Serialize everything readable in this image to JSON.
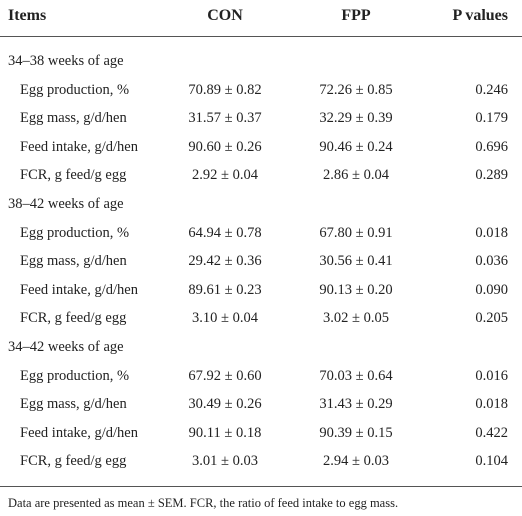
{
  "table": {
    "header": [
      "Items",
      "CON",
      "FPP",
      "P values"
    ],
    "sections": [
      {
        "title": "34–38 weeks of age",
        "rows": [
          [
            "Egg production, %",
            "70.89 ± 0.82",
            "72.26 ± 0.85",
            "0.246"
          ],
          [
            "Egg mass, g/d/hen",
            "31.57 ± 0.37",
            "32.29 ± 0.39",
            "0.179"
          ],
          [
            "Feed intake, g/d/hen",
            "90.60 ± 0.26",
            "90.46 ± 0.24",
            "0.696"
          ],
          [
            "FCR, g feed/g egg",
            "2.92 ± 0.04",
            "2.86 ± 0.04",
            "0.289"
          ]
        ]
      },
      {
        "title": "38–42 weeks of age",
        "rows": [
          [
            "Egg production, %",
            "64.94 ± 0.78",
            "67.80 ± 0.91",
            "0.018"
          ],
          [
            "Egg mass, g/d/hen",
            "29.42 ± 0.36",
            "30.56 ± 0.41",
            "0.036"
          ],
          [
            "Feed intake, g/d/hen",
            "89.61 ± 0.23",
            "90.13 ± 0.20",
            "0.090"
          ],
          [
            "FCR, g feed/g egg",
            "3.10 ± 0.04",
            "3.02 ± 0.05",
            "0.205"
          ]
        ]
      },
      {
        "title": "34–42 weeks of age",
        "rows": [
          [
            "Egg production, %",
            "67.92 ± 0.60",
            "70.03 ± 0.64",
            "0.016"
          ],
          [
            "Egg mass, g/d/hen",
            "30.49 ± 0.26",
            "31.43 ± 0.29",
            "0.018"
          ],
          [
            "Feed intake, g/d/hen",
            "90.11 ± 0.18",
            "90.39 ± 0.15",
            "0.422"
          ],
          [
            "FCR, g feed/g egg",
            "3.01 ± 0.03",
            "2.94 ± 0.03",
            "0.104"
          ]
        ]
      }
    ],
    "footnote": "Data are presented as mean ± SEM. FCR, the ratio of feed intake to egg mass."
  }
}
